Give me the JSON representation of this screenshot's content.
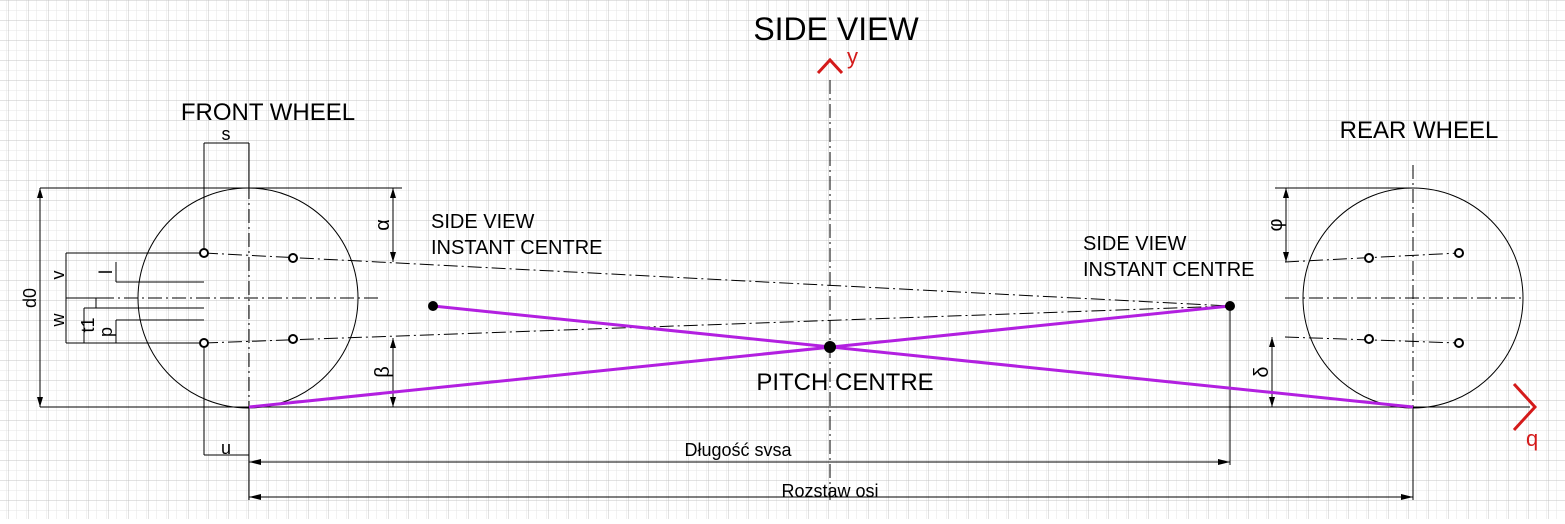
{
  "title": "SIDE VIEW",
  "front_wheel_label": "FRONT WHEEL",
  "rear_wheel_label": "REAR WHEEL",
  "front_instant_centre": {
    "line1": "SIDE VIEW",
    "line2": "INSTANT CENTRE"
  },
  "rear_instant_centre": {
    "line1": "SIDE VIEW",
    "line2": "INSTANT CENTRE"
  },
  "pitch_centre_label": "PITCH CENTRE",
  "axis": {
    "y": "y",
    "q": "q"
  },
  "dimensions": {
    "s": "s",
    "u": "u",
    "d0": "d0",
    "v": "v",
    "w": "w",
    "t1": "t1",
    "p": "p",
    "l": "l",
    "alpha": "α",
    "beta": "β",
    "phi": "φ",
    "delta": "δ",
    "svsa_length": "Długość svsa",
    "wheelbase": "Rozstaw osi"
  },
  "colors": {
    "grid_fine": "#e4e4e4",
    "grid_major": "#c4c4c4",
    "lines": "#000000",
    "svsa_lines": "#b21fe0",
    "axis_arrows": "#d41a1a"
  }
}
